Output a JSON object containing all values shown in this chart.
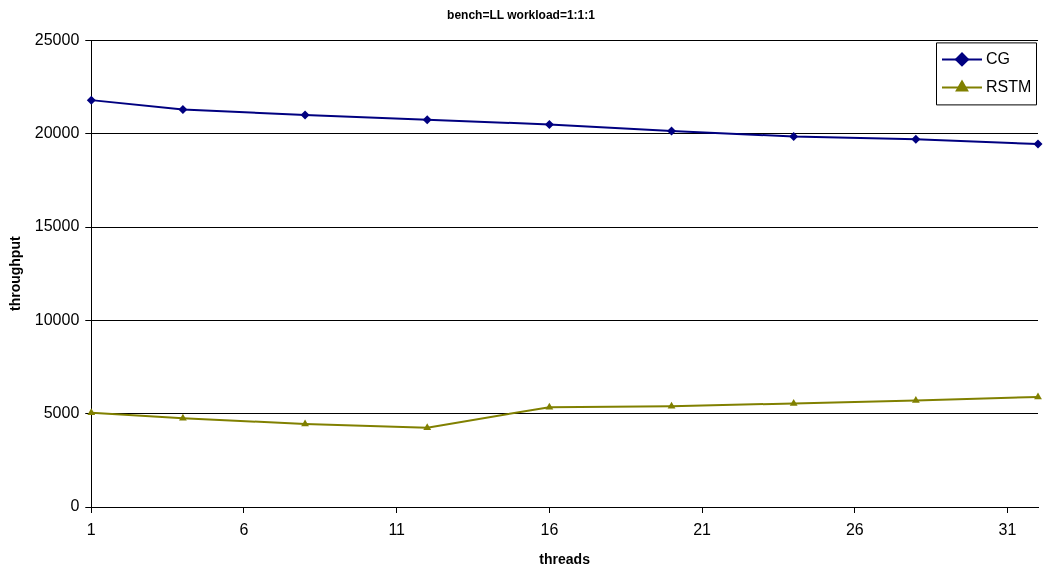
{
  "chart_data": {
    "type": "line",
    "title": "bench=LL workload=1:1:1",
    "xlabel": "threads",
    "ylabel": "throughput",
    "x": [
      1,
      4,
      8,
      12,
      16,
      20,
      24,
      28,
      32
    ],
    "series": [
      {
        "name": "CG",
        "color": "#000080",
        "marker": "diamond",
        "values": [
          21800,
          21300,
          21000,
          20750,
          20500,
          20150,
          19850,
          19700,
          19450
        ]
      },
      {
        "name": "RSTM",
        "color": "#808000",
        "marker": "triangle",
        "values": [
          5050,
          4750,
          4450,
          4250,
          5350,
          5400,
          5550,
          5700,
          5900
        ]
      }
    ],
    "xlim": [
      1,
      32
    ],
    "xticks": [
      1,
      6,
      11,
      16,
      21,
      26,
      31
    ],
    "ylim": [
      0,
      25000
    ],
    "yticks": [
      0,
      5000,
      10000,
      15000,
      20000,
      25000
    ],
    "grid": "y",
    "legend": "top right",
    "line_style": "solid"
  }
}
